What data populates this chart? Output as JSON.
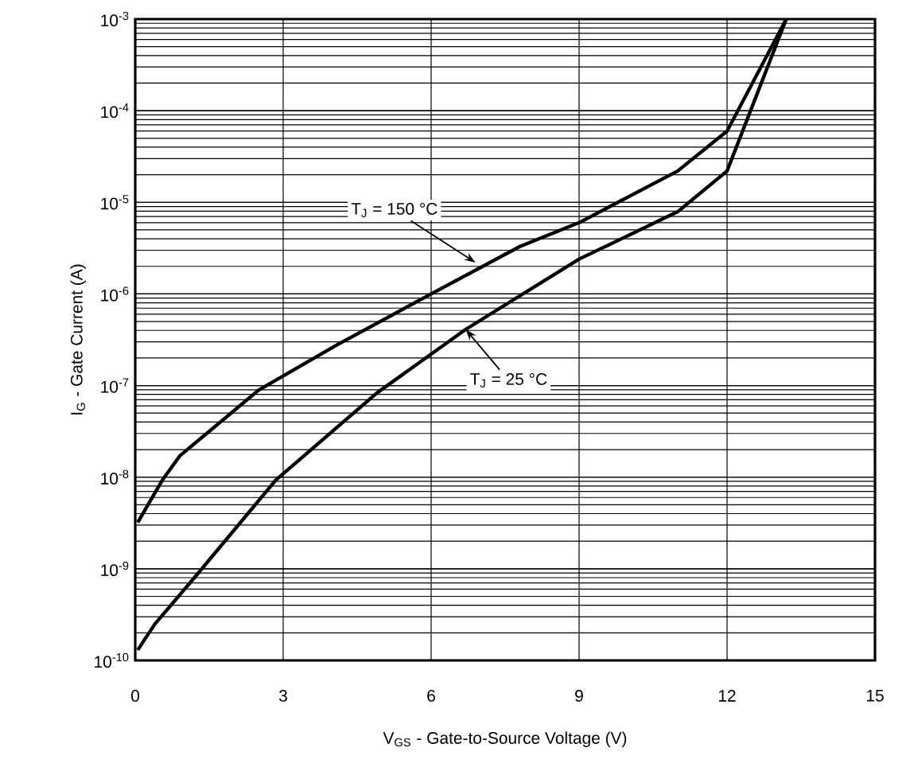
{
  "chart_data": {
    "type": "line",
    "xlabel": "V$_{GS}$ - Gate-to-Source Voltage (V)",
    "ylabel": "I$_{G}$ - Gate Current (A)",
    "log": "y",
    "grid": true,
    "marker": "none",
    "line_style": "solid",
    "xlim": [
      0,
      15
    ],
    "ylim": [
      1e-10,
      0.001
    ],
    "xticks": [
      0,
      3,
      6,
      9,
      12,
      15
    ],
    "yticks": [
      {
        "value": 1e-10,
        "label": "10$^{-10}$"
      },
      {
        "value": 1e-09,
        "label": "10$^{-9}$"
      },
      {
        "value": 1e-08,
        "label": "10$^{-8}$"
      },
      {
        "value": 1e-07,
        "label": "10$^{-7}$"
      },
      {
        "value": 1e-06,
        "label": "10$^{-6}$"
      },
      {
        "value": 1e-05,
        "label": "10$^{-5}$"
      },
      {
        "value": 0.0001,
        "label": "10$^{-4}$"
      },
      {
        "value": 0.001,
        "label": "10$^{-3}$"
      }
    ],
    "series": [
      {
        "color": "#000000",
        "x": [
          0.05,
          0.55,
          0.9,
          2.5,
          4.1,
          6.0,
          7.8,
          9.0,
          11.0,
          12.0,
          13.2
        ],
        "values": [
          3.2e-09,
          9.3e-09,
          1.7e-08,
          8.9e-08,
          2.8e-07,
          1e-06,
          3.3e-06,
          6e-06,
          2.2e-05,
          6e-05,
          0.001
        ]
      },
      {
        "color": "#000000",
        "x": [
          0.05,
          0.4,
          1.2,
          2.85,
          4.9,
          6.7,
          9.0,
          11.0,
          12.0,
          13.2
        ],
        "values": [
          1.3e-10,
          2.5e-10,
          8e-10,
          9.3e-09,
          8.3e-08,
          4.1e-07,
          2.4e-06,
          7.9e-06,
          2.2e-05,
          0.001
        ]
      }
    ],
    "annotations": [
      {
        "text": "T$_{J}$ = 150 °C",
        "x": 6.9,
        "y": 2.2e-06
      },
      {
        "text": "T$_{J}$ = 25 °C",
        "x": 6.7,
        "y": 4.1e-07
      }
    ]
  }
}
